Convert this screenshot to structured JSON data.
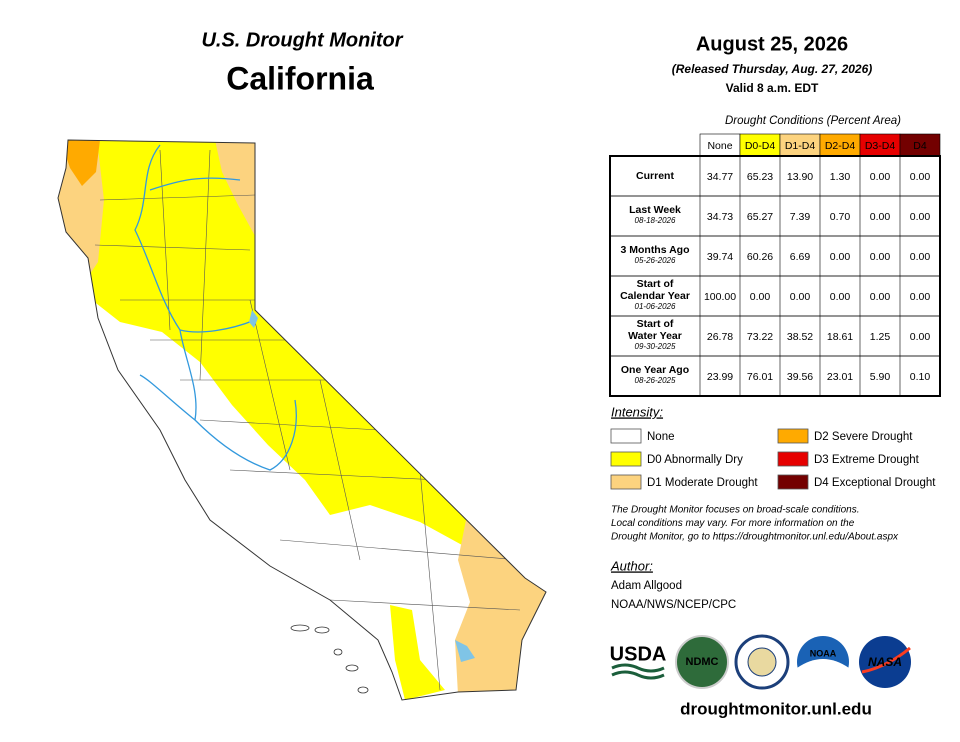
{
  "map": {
    "title": "U.S. Drought Monitor",
    "region": "California"
  },
  "header": {
    "date": "August 25, 2026",
    "released": "(Released Thursday, Aug. 27, 2026)",
    "valid": "Valid 8 a.m. EDT"
  },
  "table": {
    "caption": "Drought Conditions (Percent Area)",
    "columns": [
      "None",
      "D0-D4",
      "D1-D4",
      "D2-D4",
      "D3-D4",
      "D4"
    ],
    "column_colors": [
      "#ffffff",
      "#ffff00",
      "#fcd37f",
      "#ffaa00",
      "#e60000",
      "#730000"
    ],
    "rows": [
      {
        "label": [
          "Current"
        ],
        "values": [
          "34.77",
          "65.23",
          "13.90",
          "1.30",
          "0.00",
          "0.00"
        ]
      },
      {
        "label": [
          "Last Week"
        ],
        "date": "08-18-2026",
        "values": [
          "34.73",
          "65.27",
          "7.39",
          "0.70",
          "0.00",
          "0.00"
        ]
      },
      {
        "label": [
          "3 Months Ago"
        ],
        "date": "05-26-2026",
        "values": [
          "39.74",
          "60.26",
          "6.69",
          "0.00",
          "0.00",
          "0.00"
        ]
      },
      {
        "label": [
          "Start of",
          "Calendar Year"
        ],
        "date": "01-06-2026",
        "values": [
          "100.00",
          "0.00",
          "0.00",
          "0.00",
          "0.00",
          "0.00"
        ]
      },
      {
        "label": [
          "Start of",
          "Water Year"
        ],
        "date": "09-30-2025",
        "values": [
          "26.78",
          "73.22",
          "38.52",
          "18.61",
          "1.25",
          "0.00"
        ]
      },
      {
        "label": [
          "One Year Ago"
        ],
        "date": "08-26-2025",
        "values": [
          "23.99",
          "76.01",
          "39.56",
          "23.01",
          "5.90",
          "0.10"
        ]
      }
    ]
  },
  "legend": {
    "title": "Intensity:",
    "items": [
      {
        "label": "None",
        "color": "#ffffff"
      },
      {
        "label": "D0 Abnormally Dry",
        "color": "#ffff00"
      },
      {
        "label": "D1 Moderate Drought",
        "color": "#fcd37f"
      },
      {
        "label": "D2 Severe Drought",
        "color": "#ffaa00"
      },
      {
        "label": "D3 Extreme Drought",
        "color": "#e60000"
      },
      {
        "label": "D4 Exceptional Drought",
        "color": "#730000"
      }
    ]
  },
  "note": [
    "The Drought Monitor focuses on broad-scale conditions.",
    "Local conditions may vary. For more information on the",
    "Drought Monitor, go to https://droughtmonitor.unl.edu/About.aspx"
  ],
  "author": {
    "heading": "Author:",
    "name": "Adam Allgood",
    "affiliation": "NOAA/NWS/NCEP/CPC"
  },
  "logos": [
    "USDA",
    "NDMC",
    "NOAA",
    "NASA"
  ],
  "url": "droughtmonitor.unl.edu"
}
